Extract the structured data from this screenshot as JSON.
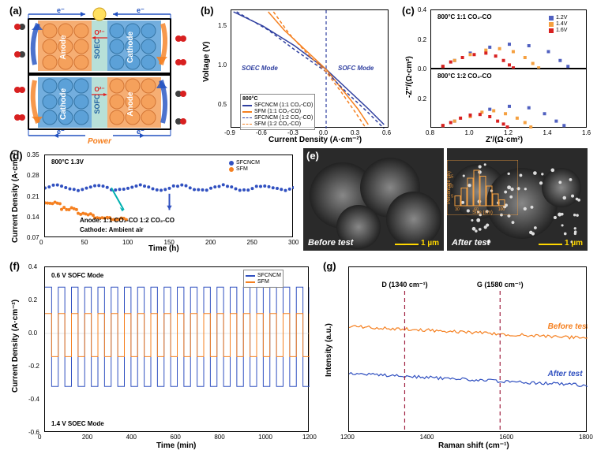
{
  "panel_a": {
    "label": "(a)",
    "colors": {
      "anode_fill": "#f5a05a",
      "cathode_fill": "#5aa0d8",
      "electrolyte_fill": "#b8e0d8",
      "red_ball": "#d82020",
      "black_ball": "#404040",
      "arrow_blue": "#2050c0",
      "arrow_red": "#e02020",
      "arrow_orange": "#f58020"
    },
    "labels": {
      "electron": "e⁻",
      "o2": "O²⁻",
      "anode": "Anode",
      "cathode": "Cathode",
      "soec": "SOEC",
      "sofc": "SOFC",
      "power": "Power"
    }
  },
  "panel_b": {
    "label": "(b)",
    "type": "line",
    "title": "800°C",
    "xlabel": "Current Density (A·cm⁻²)",
    "ylabel": "Voltage (V)",
    "xlim": [
      -0.9,
      0.6
    ],
    "ylim": [
      0.2,
      1.7
    ],
    "xticks": [
      -0.9,
      -0.6,
      -0.3,
      0.0,
      0.3,
      0.6
    ],
    "yticks": [
      0.5,
      1.0,
      1.5
    ],
    "annotations": {
      "soec": "SOEC Mode",
      "sofc": "SOFC Mode"
    },
    "series": [
      {
        "name": "SFCNCM (1:1 CO₂-CO)",
        "color": "#3040a0",
        "dash": "solid",
        "data": [
          [
            -0.88,
            1.68
          ],
          [
            -0.6,
            1.5
          ],
          [
            -0.3,
            1.25
          ],
          [
            0,
            0.95
          ],
          [
            0.2,
            0.7
          ],
          [
            0.4,
            0.45
          ],
          [
            0.55,
            0.25
          ]
        ]
      },
      {
        "name": "SFM (1:1 CO₂-CO)",
        "color": "#f58020",
        "dash": "solid",
        "data": [
          [
            -0.55,
            1.68
          ],
          [
            -0.4,
            1.45
          ],
          [
            -0.2,
            1.2
          ],
          [
            0,
            0.95
          ],
          [
            0.15,
            0.7
          ],
          [
            0.3,
            0.45
          ],
          [
            0.4,
            0.25
          ]
        ]
      },
      {
        "name": "SFCNCM (1:2 CO₂-CO)",
        "color": "#3040a0",
        "dash": "dashed",
        "data": [
          [
            -0.85,
            1.68
          ],
          [
            -0.55,
            1.45
          ],
          [
            -0.3,
            1.2
          ],
          [
            0,
            0.92
          ],
          [
            0.2,
            0.65
          ],
          [
            0.4,
            0.4
          ],
          [
            0.55,
            0.2
          ]
        ]
      },
      {
        "name": "SFM (1:2 CO₂-CO)",
        "color": "#f58020",
        "dash": "dashed",
        "data": [
          [
            -0.5,
            1.68
          ],
          [
            -0.35,
            1.4
          ],
          [
            -0.18,
            1.15
          ],
          [
            0,
            0.92
          ],
          [
            0.15,
            0.65
          ],
          [
            0.28,
            0.4
          ],
          [
            0.38,
            0.2
          ]
        ]
      }
    ],
    "zero_line_color": "#3040a0"
  },
  "panel_c": {
    "label": "(c)",
    "type": "nyquist",
    "xlabel": "Z′/(Ω·cm²)",
    "ylabel": "-Z″/(Ω·cm²)",
    "xlim": [
      0.8,
      1.6
    ],
    "ylim_top": [
      0,
      0.4
    ],
    "ylim_bot": [
      0,
      0.2
    ],
    "xticks": [
      0.8,
      1.0,
      1.2,
      1.4,
      1.6
    ],
    "yticks_top": [
      0,
      0.2,
      0.4
    ],
    "yticks_bot": [
      0,
      0.2
    ],
    "sub_titles": {
      "top": "800°C  1:1 CO₂-CO",
      "bot": "800°C  1:2 CO₂-CO"
    },
    "colors": {
      "v12": "#5060c0",
      "v14": "#f5a040",
      "v16": "#d82020"
    },
    "legend": [
      {
        "label": "1.2V",
        "color": "#5060c0"
      },
      {
        "label": "1.4V",
        "color": "#f5a040"
      },
      {
        "label": "1.6V",
        "color": "#d82020"
      }
    ],
    "arcs_top": {
      "v12": [
        [
          0.86,
          0.02
        ],
        [
          0.92,
          0.06
        ],
        [
          1.0,
          0.11
        ],
        [
          1.1,
          0.15
        ],
        [
          1.2,
          0.17
        ],
        [
          1.3,
          0.16
        ],
        [
          1.4,
          0.12
        ],
        [
          1.46,
          0.06
        ],
        [
          1.5,
          0.02
        ]
      ],
      "v14": [
        [
          0.86,
          0.02
        ],
        [
          0.92,
          0.06
        ],
        [
          1.0,
          0.1
        ],
        [
          1.08,
          0.13
        ],
        [
          1.15,
          0.14
        ],
        [
          1.22,
          0.12
        ],
        [
          1.28,
          0.08
        ],
        [
          1.32,
          0.04
        ],
        [
          1.35,
          0.01
        ]
      ],
      "v16": [
        [
          0.86,
          0.02
        ],
        [
          0.9,
          0.05
        ],
        [
          0.96,
          0.08
        ],
        [
          1.02,
          0.1
        ],
        [
          1.08,
          0.11
        ],
        [
          1.13,
          0.09
        ],
        [
          1.17,
          0.06
        ],
        [
          1.2,
          0.03
        ],
        [
          1.22,
          0.01
        ]
      ]
    },
    "arcs_bot": {
      "v12": [
        [
          0.86,
          0.02
        ],
        [
          0.92,
          0.05
        ],
        [
          1.0,
          0.09
        ],
        [
          1.1,
          0.13
        ],
        [
          1.2,
          0.15
        ],
        [
          1.3,
          0.14
        ],
        [
          1.38,
          0.1
        ],
        [
          1.44,
          0.05
        ],
        [
          1.48,
          0.02
        ]
      ],
      "v14": [
        [
          0.86,
          0.02
        ],
        [
          0.92,
          0.05
        ],
        [
          1.0,
          0.08
        ],
        [
          1.06,
          0.11
        ],
        [
          1.12,
          0.12
        ],
        [
          1.18,
          0.1
        ],
        [
          1.24,
          0.07
        ],
        [
          1.28,
          0.04
        ],
        [
          1.31,
          0.01
        ]
      ],
      "v16": [
        [
          0.86,
          0.02
        ],
        [
          0.9,
          0.04
        ],
        [
          0.95,
          0.07
        ],
        [
          1.0,
          0.09
        ],
        [
          1.05,
          0.095
        ],
        [
          1.1,
          0.08
        ],
        [
          1.14,
          0.05
        ],
        [
          1.17,
          0.03
        ],
        [
          1.19,
          0.01
        ]
      ]
    }
  },
  "panel_d": {
    "label": "(d)",
    "type": "scatter-line",
    "title": "800°C 1.3V",
    "xlabel": "Time (h)",
    "ylabel": "Current Density (A·cm⁻²)",
    "xlim": [
      0,
      300
    ],
    "ylim": [
      0.07,
      0.35
    ],
    "xticks": [
      0,
      50,
      100,
      150,
      200,
      250,
      300
    ],
    "yticks": [
      0.07,
      0.14,
      0.21,
      0.28,
      0.35
    ],
    "series": [
      {
        "name": "SFCNCM",
        "color": "#3050c0",
        "marker": "circle"
      },
      {
        "name": "SFM",
        "color": "#f58020",
        "marker": "circle"
      }
    ],
    "annotations": {
      "anode": "Anode:       1:1 CO₂-CO     1:2 CO₂-CO",
      "cathode": "Cathode:  Ambient air",
      "arrow_color_1": "#00b0b0",
      "arrow_color_2": "#3050c0"
    },
    "sfcncm_y": 0.24,
    "sfm_y": [
      [
        0,
        0.19
      ],
      [
        20,
        0.17
      ],
      [
        40,
        0.15
      ],
      [
        60,
        0.14
      ],
      [
        80,
        0.135
      ]
    ]
  },
  "panel_e": {
    "label": "(e)",
    "before_label": "Before test",
    "after_label": "After test",
    "scale_label": "1 µm",
    "scale_color": "#ffd700",
    "inset": {
      "xlabel": "Size (nm)",
      "ylabel": "Percentage (%)",
      "color": "#f5a040",
      "bars": [
        [
          30,
          5
        ],
        [
          40,
          9
        ],
        [
          50,
          14
        ],
        [
          60,
          18
        ],
        [
          70,
          15
        ],
        [
          80,
          10
        ],
        [
          90,
          6
        ],
        [
          100,
          3
        ]
      ]
    }
  },
  "panel_f": {
    "label": "(f)",
    "type": "line",
    "xlabel": "Time (min)",
    "ylabel": "Current Density (A·cm⁻²)",
    "xlim": [
      0,
      1200
    ],
    "ylim": [
      -0.6,
      0.4
    ],
    "xticks": [
      0,
      200,
      400,
      600,
      800,
      1000,
      1200
    ],
    "yticks": [
      -0.6,
      -0.4,
      -0.2,
      0.0,
      0.2,
      0.4
    ],
    "annotations": {
      "sofc": "0.6 V SOFC Mode",
      "soec": "1.4 V SOEC Mode"
    },
    "series": [
      {
        "name": "SFCNCM",
        "color": "#3050c0"
      },
      {
        "name": "SFM",
        "color": "#f58020"
      }
    ],
    "cycle_period": 60,
    "sfcncm_high": 0.28,
    "sfcncm_low": -0.32,
    "sfm_high": 0.12,
    "sfm_low": -0.14
  },
  "panel_g": {
    "label": "(g)",
    "type": "line",
    "xlabel": "Raman shift (cm⁻¹)",
    "ylabel": "Intensity (a.u.)",
    "xlim": [
      1200,
      1800
    ],
    "ylim": [
      0,
      1
    ],
    "xticks": [
      1200,
      1400,
      1600,
      1800
    ],
    "series": [
      {
        "name": "Before test",
        "color": "#f58020",
        "style": "italic"
      },
      {
        "name": "After test",
        "color": "#3050c0",
        "style": "italic"
      }
    ],
    "markers": {
      "d_pos": 1340,
      "d_label": "D (1340 cm⁻¹)",
      "g_pos": 1580,
      "g_label": "G (1580 cm⁻¹)",
      "line_color": "#a02040"
    }
  }
}
